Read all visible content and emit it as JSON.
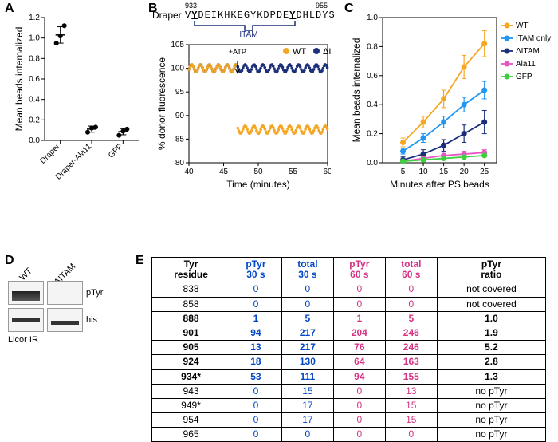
{
  "labels": {
    "A": "A",
    "B": "B",
    "C": "C",
    "D": "D",
    "E": "E"
  },
  "panelA": {
    "type": "dot-plot",
    "title": "",
    "ylabel": "Mean beads internalized",
    "ylim": [
      0,
      1.2
    ],
    "ytick_step": 0.2,
    "categories": [
      "Draper",
      "Draper-Ala11",
      "GFP"
    ],
    "means": [
      1.03,
      0.11,
      0.085
    ],
    "errors": [
      0.08,
      0.03,
      0.03
    ],
    "points": [
      [
        0.95,
        1.02,
        1.12
      ],
      [
        0.08,
        0.12,
        0.13
      ],
      [
        0.05,
        0.09,
        0.11
      ]
    ],
    "color": "#000000",
    "label_fontsize": 12
  },
  "panelB": {
    "sequence_start": "933",
    "sequence_end": "955",
    "protein": "Draper",
    "sequence_pre": "V",
    "sequence_y1": "Y",
    "sequence_mid": "DEIKHKEGYKDPDE",
    "sequence_y2": "Y",
    "sequence_post": "DHLDYS",
    "itam_label": "ITAM",
    "atp_label": "+ATP",
    "xlabel": "Time (minutes)",
    "ylabel": "% donor fluorescence",
    "ylim": [
      80,
      105
    ],
    "yticks": [
      80,
      85,
      90,
      95,
      100,
      105
    ],
    "xlim": [
      40,
      60
    ],
    "xticks": [
      40,
      45,
      50,
      55,
      60
    ],
    "series": {
      "WT": {
        "label": "WT",
        "color": "#f5a623"
      },
      "dITAM": {
        "label": "ΔITAM",
        "color": "#1c2f7a"
      }
    },
    "wt_flat_y": 100,
    "wt_drop_y": 87,
    "ditam_y": 100,
    "drop_x": 47
  },
  "panelC": {
    "xlabel": "Minutes after PS beads",
    "ylabel": "Mean beads internalized",
    "xlim": [
      0,
      28
    ],
    "xticks": [
      5,
      10,
      15,
      20,
      25
    ],
    "ylim": [
      0,
      1.0
    ],
    "yticks": [
      0,
      0.2,
      0.4,
      0.6,
      0.8,
      1.0
    ],
    "series": [
      {
        "name": "WT",
        "color": "#f5a623",
        "x": [
          5,
          10,
          15,
          20,
          25
        ],
        "y": [
          0.14,
          0.28,
          0.44,
          0.66,
          0.82
        ],
        "err": [
          0.03,
          0.04,
          0.06,
          0.08,
          0.09
        ]
      },
      {
        "name": "ITAM only",
        "color": "#2196f3",
        "x": [
          5,
          10,
          15,
          20,
          25
        ],
        "y": [
          0.08,
          0.17,
          0.28,
          0.4,
          0.5
        ],
        "err": [
          0.02,
          0.03,
          0.04,
          0.05,
          0.06
        ]
      },
      {
        "name": "ΔITAM",
        "color": "#1c2f7a",
        "x": [
          5,
          10,
          15,
          20,
          25
        ],
        "y": [
          0.02,
          0.06,
          0.12,
          0.2,
          0.28
        ],
        "err": [
          0.02,
          0.03,
          0.04,
          0.06,
          0.08
        ]
      },
      {
        "name": "Ala11",
        "color": "#e854c4",
        "x": [
          5,
          10,
          15,
          20,
          25
        ],
        "y": [
          0.01,
          0.03,
          0.05,
          0.06,
          0.07
        ],
        "err": [
          0.01,
          0.01,
          0.01,
          0.02,
          0.02
        ]
      },
      {
        "name": "GFP",
        "color": "#3ecf3e",
        "x": [
          5,
          10,
          15,
          20,
          25
        ],
        "y": [
          0.01,
          0.02,
          0.03,
          0.04,
          0.05
        ],
        "err": [
          0.01,
          0.01,
          0.01,
          0.01,
          0.01
        ]
      }
    ]
  },
  "panelD": {
    "lane1": "WT",
    "lane2": "ΔITAM",
    "row1_label": "pTyr",
    "row2_label": "his",
    "caption": "Licor IR"
  },
  "panelE": {
    "columns": [
      "Tyr\nresidue",
      "pTyr\n30 s",
      "total\n30 s",
      "pTyr\n60 s",
      "total\n60 s",
      "pTyr\nratio"
    ],
    "col_colors": [
      "#000000",
      "#0046c8",
      "#0046c8",
      "#d63384",
      "#d63384",
      "#000000"
    ],
    "rows": [
      {
        "bold": false,
        "cells": [
          "838",
          "0",
          "0",
          "0",
          "0",
          "not covered"
        ]
      },
      {
        "bold": false,
        "cells": [
          "858",
          "0",
          "0",
          "0",
          "0",
          "not covered"
        ]
      },
      {
        "bold": true,
        "cells": [
          "888",
          "1",
          "5",
          "1",
          "5",
          "1.0"
        ]
      },
      {
        "bold": true,
        "cells": [
          "901",
          "94",
          "217",
          "204",
          "246",
          "1.9"
        ]
      },
      {
        "bold": true,
        "cells": [
          "905",
          "13",
          "217",
          "76",
          "246",
          "5.2"
        ]
      },
      {
        "bold": true,
        "cells": [
          "924",
          "18",
          "130",
          "64",
          "163",
          "2.8"
        ]
      },
      {
        "bold": true,
        "cells": [
          "934*",
          "53",
          "111",
          "94",
          "155",
          "1.3"
        ]
      },
      {
        "bold": false,
        "cells": [
          "943",
          "0",
          "15",
          "0",
          "13",
          "no pTyr"
        ]
      },
      {
        "bold": false,
        "cells": [
          "949*",
          "0",
          "17",
          "0",
          "15",
          "no pTyr"
        ]
      },
      {
        "bold": false,
        "cells": [
          "954",
          "0",
          "17",
          "0",
          "15",
          "no pTyr"
        ]
      },
      {
        "bold": false,
        "cells": [
          "965",
          "0",
          "0",
          "0",
          "0",
          "no pTyr"
        ]
      }
    ]
  }
}
